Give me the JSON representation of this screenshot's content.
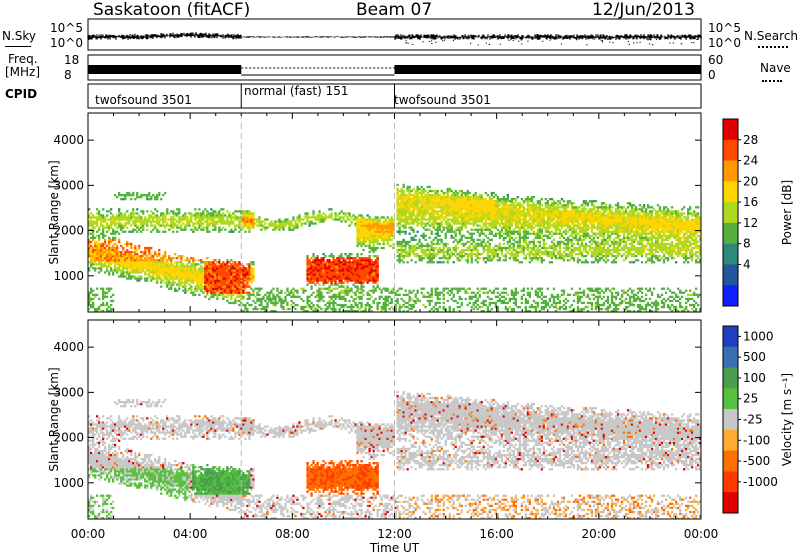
{
  "header": {
    "station": "Saskatoon (fitACF)",
    "beam": "Beam 07",
    "date": "12/Jun/2013"
  },
  "nsky_panel": {
    "left_label": "N.Sky",
    "left_ticks": [
      "10^5",
      "10^0"
    ],
    "right_ticks": [
      "10^5",
      "10^0"
    ],
    "right_label": "N.Search"
  },
  "freq_panel": {
    "left_label_1": "Freq.",
    "left_label_2": "[MHz]",
    "left_ticks": [
      "18",
      "8"
    ],
    "right_ticks": [
      "60",
      "0"
    ],
    "right_label": "Nave"
  },
  "cpid_panel": {
    "label": "CPID",
    "segments": [
      {
        "name": "twofsound 3501",
        "start": 0,
        "end": 6
      },
      {
        "name": "normal (fast) 151",
        "start": 6,
        "end": 12
      },
      {
        "name": "twofsound 3501",
        "start": 12,
        "end": 24
      }
    ]
  },
  "chart_data": [
    {
      "type": "heatmap",
      "title": "",
      "ylabel": "Slant Range [km]",
      "xlabel": "",
      "xlim": [
        0,
        24
      ],
      "ylim": [
        200,
        4600
      ],
      "yticks": [
        "1000",
        "2000",
        "3000",
        "4000"
      ],
      "colorbar": {
        "label": "Power [dB]",
        "ticks": [
          "28",
          "24",
          "20",
          "16",
          "12",
          "8",
          "4"
        ],
        "colors": [
          "#e00000",
          "#ff4a00",
          "#ff9a00",
          "#ffd500",
          "#b0d820",
          "#55b040",
          "#2e8a78",
          "#24569e",
          "#1020ff"
        ]
      }
    },
    {
      "type": "heatmap",
      "title": "",
      "ylabel": "Slant Range [km]",
      "xlabel": "Time UT",
      "xlim": [
        0,
        24
      ],
      "ylim": [
        200,
        4600
      ],
      "yticks": [
        "1000",
        "2000",
        "3000",
        "4000"
      ],
      "xticks": [
        "00:00",
        "04:00",
        "08:00",
        "12:00",
        "16:00",
        "20:00",
        "00:00"
      ],
      "colorbar": {
        "label": "Velocity [m s⁻¹]",
        "ticks": [
          "1000",
          "500",
          "100",
          "25",
          "-25",
          "-100",
          "-500",
          "-1000"
        ],
        "colors": [
          "#2040c0",
          "#3a70b0",
          "#4a9e4e",
          "#58c040",
          "#c8c8c8",
          "#ffaa30",
          "#ff7000",
          "#ff3a00",
          "#e00000"
        ]
      }
    }
  ]
}
